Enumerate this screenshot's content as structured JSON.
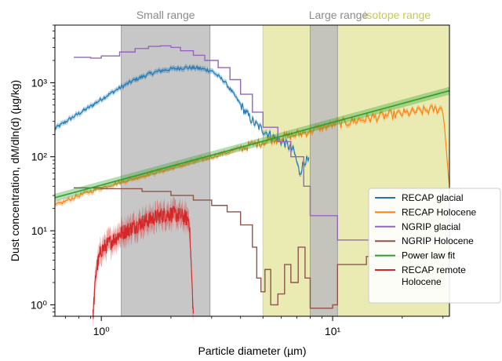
{
  "chart_data": {
    "type": "line",
    "title": "",
    "xlabel": "Particle diameter (µm)",
    "ylabel": "Dust concentration, dM/dln(d) (µg/kg)",
    "x_scale": "log",
    "y_scale": "log",
    "xlim": [
      0.63,
      32
    ],
    "ylim": [
      0.7,
      6000
    ],
    "x_ticks": [
      {
        "value": 1,
        "label": "10⁰"
      },
      {
        "value": 10,
        "label": "10¹"
      }
    ],
    "y_ticks": [
      {
        "value": 1,
        "label": "10⁰"
      },
      {
        "value": 10,
        "label": "10¹"
      },
      {
        "value": 100,
        "label": "10²"
      },
      {
        "value": 1000,
        "label": "10³"
      }
    ],
    "grid": false,
    "legend_position": "lower-right",
    "regions": [
      {
        "name": "Small range",
        "x_start": 1.22,
        "x_end": 2.95,
        "color": "#bdbdbd"
      },
      {
        "name": "Isotope range",
        "x_start": 5.0,
        "x_end": 32,
        "color": "#e6e6a6"
      },
      {
        "name": "Large range",
        "x_start": 8.0,
        "x_end": 10.5,
        "color": "#bdbdbd"
      }
    ],
    "series": [
      {
        "name": "RECAP glacial",
        "color": "#1f77b4",
        "style": "noisy-band",
        "points": [
          [
            0.63,
            240
          ],
          [
            0.75,
            340
          ],
          [
            0.9,
            480
          ],
          [
            1.0,
            600
          ],
          [
            1.2,
            850
          ],
          [
            1.4,
            1100
          ],
          [
            1.6,
            1300
          ],
          [
            1.8,
            1450
          ],
          [
            2.0,
            1530
          ],
          [
            2.3,
            1600
          ],
          [
            2.6,
            1580
          ],
          [
            3.0,
            1450
          ],
          [
            3.4,
            1050
          ],
          [
            3.8,
            650
          ],
          [
            4.2,
            400
          ],
          [
            4.6,
            280
          ],
          [
            5.0,
            230
          ],
          [
            5.6,
            180
          ],
          [
            6.2,
            155
          ],
          [
            6.8,
            120
          ],
          [
            7.2,
            60
          ],
          [
            7.6,
            90
          ],
          [
            7.9,
            85
          ]
        ]
      },
      {
        "name": "RECAP Holocene",
        "color": "#ff7f0e",
        "style": "noisy-band",
        "points": [
          [
            0.63,
            22
          ],
          [
            0.8,
            30
          ],
          [
            1.0,
            38
          ],
          [
            1.5,
            55
          ],
          [
            2.0,
            70
          ],
          [
            3.0,
            100
          ],
          [
            4.0,
            130
          ],
          [
            5.0,
            160
          ],
          [
            7.0,
            200
          ],
          [
            10.0,
            270
          ],
          [
            15.0,
            340
          ],
          [
            20.0,
            380
          ],
          [
            25.0,
            420
          ],
          [
            30.0,
            450
          ],
          [
            32.0,
            40
          ]
        ]
      },
      {
        "name": "NGRIP glacial",
        "color": "#9467bd",
        "style": "step",
        "points": [
          [
            0.76,
            2200
          ],
          [
            0.9,
            2150
          ],
          [
            1.0,
            2300
          ],
          [
            1.2,
            2600
          ],
          [
            1.4,
            2900
          ],
          [
            1.6,
            3100
          ],
          [
            1.8,
            3150
          ],
          [
            2.0,
            3000
          ],
          [
            2.2,
            2700
          ],
          [
            2.5,
            2350
          ],
          [
            2.8,
            2000
          ],
          [
            3.2,
            1600
          ],
          [
            3.6,
            1100
          ],
          [
            4.0,
            700
          ],
          [
            4.5,
            400
          ],
          [
            5.0,
            250
          ],
          [
            5.8,
            160
          ],
          [
            6.6,
            100
          ],
          [
            7.5,
            40
          ],
          [
            8.0,
            16
          ],
          [
            10.5,
            7.5
          ],
          [
            32,
            7.5
          ]
        ]
      },
      {
        "name": "NGRIP Holocene",
        "color": "#8c564b",
        "style": "step",
        "points": [
          [
            0.76,
            38
          ],
          [
            1.0,
            37
          ],
          [
            1.5,
            34
          ],
          [
            2.0,
            30
          ],
          [
            2.5,
            26
          ],
          [
            3.0,
            22
          ],
          [
            3.5,
            18
          ],
          [
            4.0,
            12
          ],
          [
            4.5,
            6
          ],
          [
            4.7,
            2.3
          ],
          [
            4.9,
            1.5
          ],
          [
            5.1,
            3.0
          ],
          [
            5.4,
            1.0
          ],
          [
            5.8,
            1.4
          ],
          [
            6.2,
            3.5
          ],
          [
            6.6,
            2.0
          ],
          [
            7.1,
            6.0
          ],
          [
            7.6,
            2.3
          ],
          [
            8.0,
            0.9
          ],
          [
            10.0,
            1.0
          ],
          [
            10.5,
            3.5
          ],
          [
            14.0,
            4.5
          ],
          [
            32,
            4.5
          ]
        ]
      },
      {
        "name": "Power law fit",
        "color": "#2ca02c",
        "style": "band",
        "points": [
          [
            0.63,
            28
          ],
          [
            32,
            780
          ]
        ]
      },
      {
        "name": "RECAP remote\nHolocene",
        "color": "#d62728",
        "style": "noisy-band",
        "points": [
          [
            0.92,
            0.7
          ],
          [
            0.95,
            3.0
          ],
          [
            1.0,
            5.5
          ],
          [
            1.2,
            9.0
          ],
          [
            1.5,
            13.0
          ],
          [
            1.8,
            16.0
          ],
          [
            2.0,
            17.0
          ],
          [
            2.2,
            16.0
          ],
          [
            2.4,
            14.0
          ],
          [
            2.5,
            0.7
          ]
        ]
      }
    ]
  }
}
